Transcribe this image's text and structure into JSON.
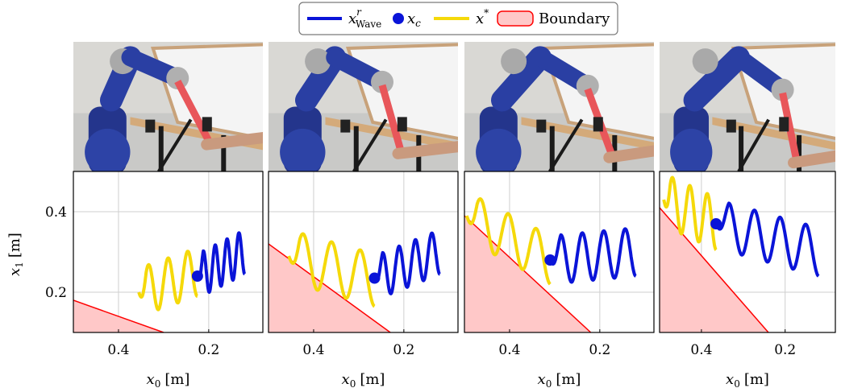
{
  "legend": {
    "items": [
      {
        "id": "wave",
        "label": "x",
        "sup": "r",
        "sub": "Wave",
        "color": "#0a14d8",
        "kind": "line"
      },
      {
        "id": "xc",
        "label": "x",
        "sub": "c",
        "color": "#0a14d8",
        "kind": "dot"
      },
      {
        "id": "xstar",
        "label": "x",
        "sup": "*",
        "color": "#f5d90a",
        "kind": "line"
      },
      {
        "id": "boundary",
        "label": "Boundary",
        "color": "#ff0000",
        "fill": "#ffc8c8",
        "kind": "patch"
      }
    ]
  },
  "photos": [
    {
      "description": "robot-arm-photo-1"
    },
    {
      "description": "robot-arm-photo-2"
    },
    {
      "description": "robot-arm-photo-3"
    },
    {
      "description": "robot-arm-photo-4"
    }
  ],
  "chart_data": [
    {
      "type": "line",
      "xlim": [
        0.5,
        0.08
      ],
      "ylim": [
        0.1,
        0.5
      ],
      "xticks": [
        0.4,
        0.2
      ],
      "xtick_labels": [
        "0.4",
        "0.2"
      ],
      "yticks": [
        0.2,
        0.4
      ],
      "ytick_labels": [
        "0.2",
        "0.4"
      ],
      "xlabel": {
        "var": "x",
        "sub": "0",
        "unit": "[m]"
      },
      "ylabel": {
        "var": "x",
        "sub": "1",
        "unit": "[m]"
      },
      "grid": true,
      "boundary": [
        [
          0.5,
          0.18
        ],
        [
          0.3,
          0.1
        ]
      ],
      "x_star": {
        "start": [
          0.355,
          0.2
        ],
        "end": [
          0.225,
          0.25
        ],
        "amp": 0.06,
        "cycles": 3
      },
      "x_wave": {
        "start": [
          0.225,
          0.24
        ],
        "end": [
          0.12,
          0.3
        ],
        "amp": 0.055,
        "cycles": 4
      },
      "x_c": [
        0.225,
        0.24
      ]
    },
    {
      "type": "line",
      "xlim": [
        0.5,
        0.08
      ],
      "ylim": [
        0.1,
        0.5
      ],
      "xticks": [
        0.4,
        0.2
      ],
      "xtick_labels": [
        "0.4",
        "0.2"
      ],
      "yticks": [
        0.2,
        0.4
      ],
      "ytick_labels": [
        "",
        ""
      ],
      "xlabel": {
        "var": "x",
        "sub": "0",
        "unit": "[m]"
      },
      "grid": true,
      "boundary": [
        [
          0.5,
          0.32
        ],
        [
          0.23,
          0.1
        ]
      ],
      "x_star": {
        "start": [
          0.455,
          0.29
        ],
        "end": [
          0.265,
          0.23
        ],
        "amp": 0.065,
        "cycles": 3
      },
      "x_wave": {
        "start": [
          0.265,
          0.235
        ],
        "end": [
          0.12,
          0.3
        ],
        "amp": 0.055,
        "cycles": 4
      },
      "x_c": [
        0.265,
        0.235
      ]
    },
    {
      "type": "line",
      "xlim": [
        0.5,
        0.08
      ],
      "ylim": [
        0.1,
        0.5
      ],
      "xticks": [
        0.4,
        0.2
      ],
      "xtick_labels": [
        "0.4",
        "0.2"
      ],
      "yticks": [
        0.2,
        0.4
      ],
      "ytick_labels": [
        "",
        ""
      ],
      "xlabel": {
        "var": "x",
        "sub": "0",
        "unit": "[m]"
      },
      "grid": true,
      "boundary": [
        [
          0.5,
          0.39
        ],
        [
          0.22,
          0.1
        ]
      ],
      "x_star": {
        "start": [
          0.495,
          0.39
        ],
        "end": [
          0.31,
          0.28
        ],
        "amp": 0.06,
        "cycles": 3
      },
      "x_wave": {
        "start": [
          0.31,
          0.28
        ],
        "end": [
          0.12,
          0.3
        ],
        "amp": 0.06,
        "cycles": 4
      },
      "x_c": [
        0.31,
        0.28
      ]
    },
    {
      "type": "line",
      "xlim": [
        0.5,
        0.08
      ],
      "ylim": [
        0.1,
        0.5
      ],
      "xticks": [
        0.4,
        0.2
      ],
      "xtick_labels": [
        "0.4",
        "0.2"
      ],
      "yticks": [
        0.2,
        0.4
      ],
      "ytick_labels": [
        "",
        ""
      ],
      "xlabel": {
        "var": "x",
        "sub": "0",
        "unit": "[m]"
      },
      "grid": true,
      "boundary": [
        [
          0.5,
          0.41
        ],
        [
          0.24,
          0.1
        ]
      ],
      "x_star": {
        "start": [
          0.49,
          0.43
        ],
        "end": [
          0.365,
          0.37
        ],
        "amp": 0.065,
        "cycles": 3
      },
      "x_wave": {
        "start": [
          0.365,
          0.37
        ],
        "end": [
          0.12,
          0.3
        ],
        "amp": 0.06,
        "cycles": 4
      },
      "x_c": [
        0.365,
        0.37
      ]
    }
  ]
}
